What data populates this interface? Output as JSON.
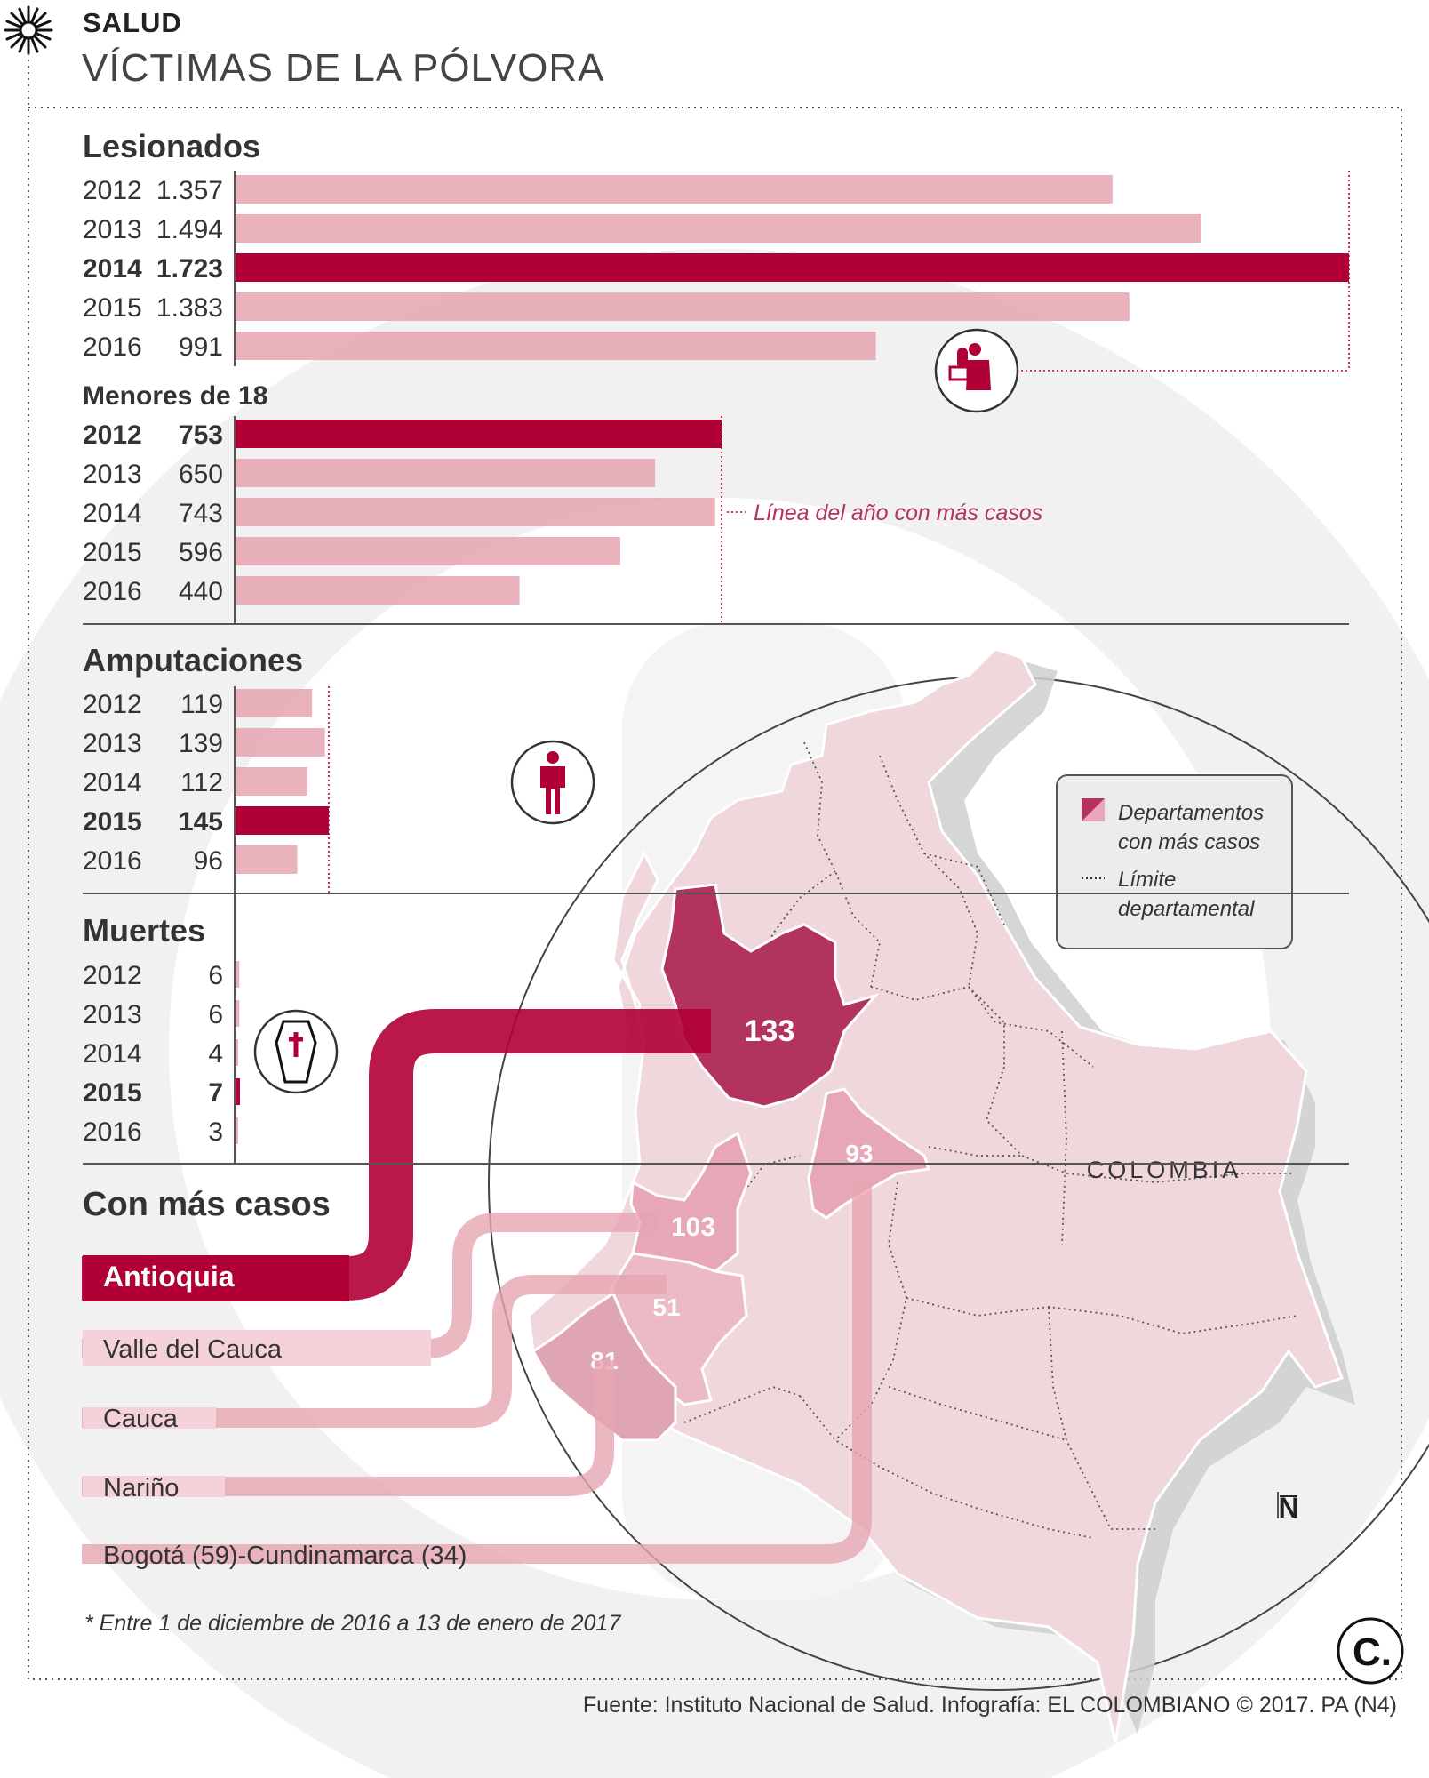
{
  "header": {
    "section": "SALUD",
    "title": "VÍCTIMAS DE LA PÓLVORA"
  },
  "colors": {
    "highlight": "#b00035",
    "bar": "#e6a5b2",
    "map_fill": "#efd7dc",
    "map_dept_hi": "#b23260",
    "map_dept_mid": "#e8a7b8"
  },
  "chart_data": [
    {
      "type": "bar",
      "orientation": "horizontal",
      "title": "Lesionados",
      "categories": [
        "2012",
        "2013",
        "2014",
        "2015",
        "2016"
      ],
      "labels": [
        "1.357",
        "1.494",
        "1.723",
        "1.383",
        "991"
      ],
      "values": [
        1357,
        1494,
        1723,
        1383,
        991
      ],
      "highlight": "2014",
      "icon": "injured-person-icon"
    },
    {
      "type": "bar",
      "orientation": "horizontal",
      "title": "Menores de 18",
      "categories": [
        "2012",
        "2013",
        "2014",
        "2015",
        "2016"
      ],
      "labels": [
        "753",
        "650",
        "743",
        "596",
        "440"
      ],
      "values": [
        753,
        650,
        743,
        596,
        440
      ],
      "highlight": "2012",
      "annotation": "Línea del año con más casos"
    },
    {
      "type": "bar",
      "orientation": "horizontal",
      "title": "Amputaciones",
      "categories": [
        "2012",
        "2013",
        "2014",
        "2015",
        "2016"
      ],
      "labels": [
        "119",
        "139",
        "112",
        "145",
        "96"
      ],
      "values": [
        119,
        139,
        112,
        145,
        96
      ],
      "highlight": "2015",
      "icon": "amputee-person-icon"
    },
    {
      "type": "bar",
      "orientation": "horizontal",
      "title": "Muertes",
      "categories": [
        "2012",
        "2013",
        "2014",
        "2015",
        "2016"
      ],
      "labels": [
        "6",
        "6",
        "4",
        "7",
        "3"
      ],
      "values": [
        6,
        6,
        4,
        7,
        3
      ],
      "highlight": "2015",
      "icon": "coffin-icon"
    }
  ],
  "departments": {
    "title": "Con más casos",
    "items": [
      {
        "name": "Antioquia",
        "value": "133"
      },
      {
        "name": "Valle del Cauca",
        "value": "103"
      },
      {
        "name": "Cauca",
        "value": "51"
      },
      {
        "name": "Nariño",
        "value": "81"
      },
      {
        "name": "Bogotá (59)-Cundinamarca (34)",
        "value": "93"
      }
    ]
  },
  "map": {
    "country_label": "COLOMBIA",
    "north_label": "N",
    "legend": {
      "dept_line1": "Departamentos",
      "dept_line2": "con más casos",
      "limit_line1": "Límite",
      "limit_line2": "departamental"
    }
  },
  "footnote": "* Entre 1 de diciembre de 2016 a 13 de enero de 2017",
  "source": "Fuente: Instituto Nacional de Salud. Infografía: EL COLOMBIANO © 2017. PA (N4)",
  "logo": "C."
}
